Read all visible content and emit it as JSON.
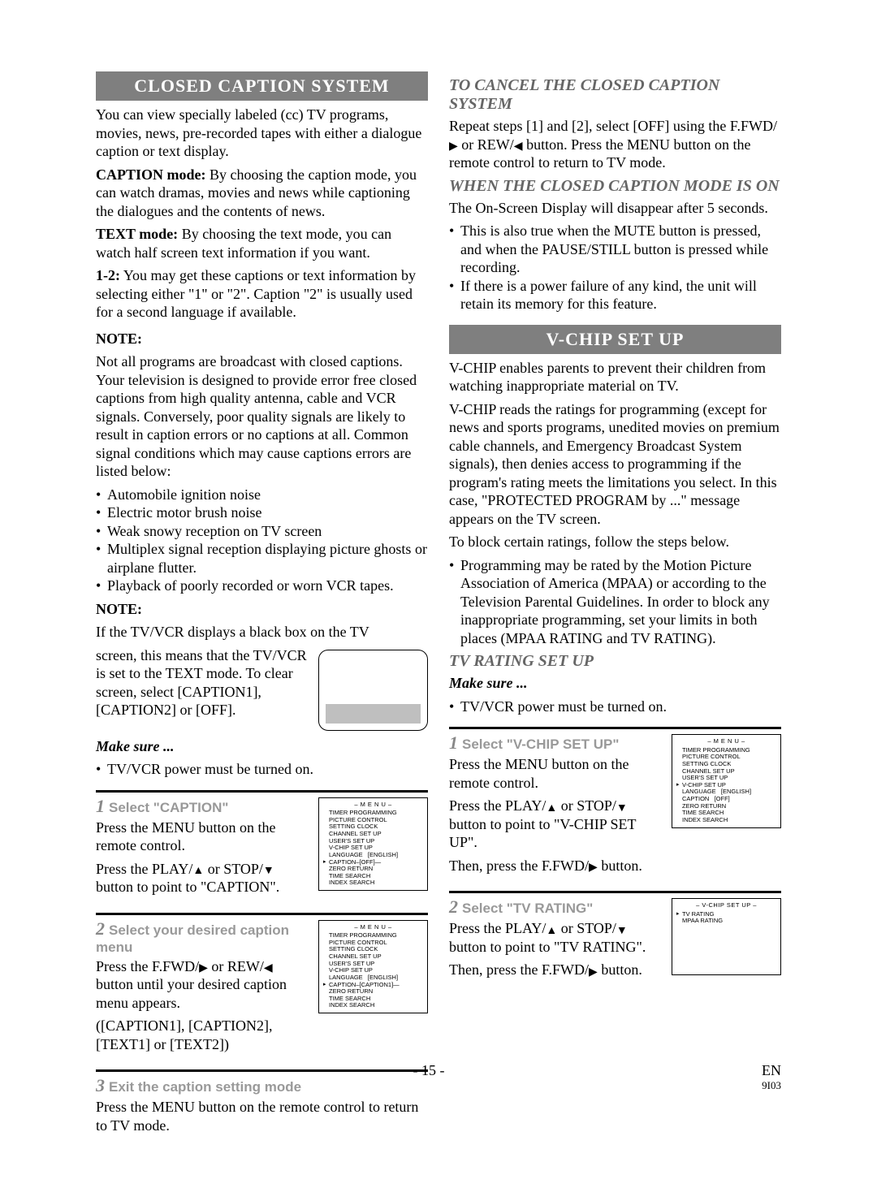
{
  "left": {
    "header": "CLOSED CAPTION SYSTEM",
    "intro": "You can view specially labeled (cc) TV programs, movies, news, pre-recorded tapes with either a dialogue caption or text display.",
    "caption_mode_label": "CAPTION mode:",
    "caption_mode_text": " By choosing the caption mode, you can watch dramas, movies and news while captioning the dialogues and the contents of news.",
    "text_mode_label": "TEXT mode:",
    "text_mode_text": " By choosing the text mode, you can watch half screen text information if you want.",
    "one_two_label": "1-2:",
    "one_two_text": " You may get these captions or text information by selecting either \"1\" or \"2\". Caption \"2\" is usually used for a second language if available.",
    "note_label": "NOTE:",
    "note_text": "Not all programs are broadcast with closed captions. Your television is designed to provide error free closed captions from high quality antenna, cable and VCR signals. Conversely, poor quality signals are likely to result in caption errors or no captions at all. Common signal conditions which may cause captions errors are listed below:",
    "note_bullets": [
      "Automobile ignition noise",
      "Electric motor brush noise",
      "Weak snowy reception on TV screen",
      "Multiplex signal reception displaying picture ghosts or airplane flutter.",
      "Playback of poorly recorded or worn VCR tapes."
    ],
    "note2_label": "NOTE:",
    "note2_a": "If the TV/VCR displays a black box on the TV",
    "note2_b": "screen, this means that the TV/VCR is set to the TEXT mode. To clear screen, select [CAPTION1], [CAPTION2] or [OFF].",
    "make_sure": "Make sure ...",
    "make_sure_item": "TV/VCR power must be turned on.",
    "step1": {
      "n": "1",
      "title": "Select \"CAPTION\"",
      "b1": "Press the MENU button on the remote control.",
      "b2_a": "Press the PLAY/",
      "b2_b": " or STOP/",
      "b2_c": " button to point to \"CAPTION\"."
    },
    "step2": {
      "n": "2",
      "title": "Select your desired caption menu",
      "b1_a": "Press the F.FWD/",
      "b1_b": " or REW/",
      "b1_c": " button until your desired caption menu appears.",
      "b2": "([CAPTION1], [CAPTION2], [TEXT1] or [TEXT2])"
    },
    "step3": {
      "n": "3",
      "title": "Exit the caption setting mode",
      "b1": "Press the MENU button on the remote control to return to TV mode."
    },
    "osd1": {
      "title": "– M E N U –",
      "lines": [
        "TIMER PROGRAMMING",
        "PICTURE CONTROL",
        "SETTING CLOCK",
        "CHANNEL SET UP",
        "USER'S SET UP",
        "V-CHIP SET UP",
        "LANGUAGE   [ENGLISH]",
        "CAPTION–[OFF]—",
        "ZERO RETURN",
        "TIME SEARCH",
        "INDEX SEARCH"
      ],
      "ptr_index": 7
    },
    "osd2": {
      "title": "– M E N U –",
      "lines": [
        "TIMER PROGRAMMING",
        "PICTURE CONTROL",
        "SETTING CLOCK",
        "CHANNEL SET UP",
        "USER'S SET UP",
        "V-CHIP SET UP",
        "LANGUAGE   [ENGLISH]",
        "CAPTION–[CAPTION1]—",
        "ZERO RETURN",
        "TIME SEARCH",
        "INDEX SEARCH"
      ],
      "ptr_index": 7
    }
  },
  "right": {
    "h1": "TO CANCEL THE CLOSED CAPTION SYSTEM",
    "p1_a": "Repeat steps [1] and [2], select [OFF] using the F.FWD/",
    "p1_b": " or REW/",
    "p1_c": " button. Press the MENU button on the remote control to return to TV mode.",
    "h2": "WHEN THE CLOSED CAPTION MODE IS ON",
    "p2": "The On-Screen Display will disappear after 5 seconds.",
    "b2": [
      "This is also true when the MUTE button is pressed, and when the PAUSE/STILL button is pressed while recording.",
      "If there is a power failure of any kind, the unit will retain its memory for this feature."
    ],
    "header2": "V-CHIP SET UP",
    "p3": "V-CHIP enables parents to prevent their children from watching inappropriate material on TV.",
    "p4": "V-CHIP reads the ratings for programming (except for news and sports programs, unedited movies on premium cable channels, and Emergency Broadcast System signals), then denies access to programming if the program's rating meets the limitations you select. In this case, \"PROTECTED PROGRAM by ...\" message appears on the TV screen.",
    "p5": "To block certain ratings, follow the steps below.",
    "b3": [
      "Programming may be rated by the Motion Picture Association of America (MPAA) or according to the Television Parental Guidelines. In order to block any inappropriate programming, set your limits in both places (MPAA RATING and TV RATING)."
    ],
    "h3": "TV RATING SET UP",
    "make_sure": "Make sure ...",
    "make_sure_item": "TV/VCR power must be turned on.",
    "step1": {
      "n": "1",
      "title": "Select \"V-CHIP SET UP\"",
      "b1": "Press the MENU button on the remote control.",
      "b2_a": "Press the PLAY/",
      "b2_b": " or STOP/",
      "b2_c": " button to point to \"V-CHIP SET UP\".",
      "b3_a": "Then, press the F.FWD/",
      "b3_b": " button."
    },
    "step2": {
      "n": "2",
      "title": "Select \"TV RATING\"",
      "b1_a": "Press the PLAY/",
      "b1_b": " or STOP/",
      "b1_c": " button to point to \"TV RATING\".",
      "b2_a": "Then, press the F.FWD/",
      "b2_b": " button."
    },
    "osd1": {
      "title": "– M E N U –",
      "lines": [
        "TIMER PROGRAMMING",
        "PICTURE CONTROL",
        "SETTING CLOCK",
        "CHANNEL SET UP",
        "USER'S SET UP",
        "V-CHIP SET UP",
        "LANGUAGE   [ENGLISH]",
        "CAPTION   [OFF]",
        "ZERO RETURN",
        "TIME SEARCH",
        "INDEX SEARCH"
      ],
      "ptr_index": 5
    },
    "osd2": {
      "title": "– V-CHIP SET UP –",
      "lines": [
        "TV RATING",
        "MPAA RATING"
      ],
      "ptr_index": 0
    }
  },
  "footer": {
    "page": "- 15 -",
    "lang": "EN",
    "code": "9I03"
  },
  "symbols": {
    "up": "▲",
    "down": "▼",
    "right": "▶",
    "left": "◀",
    "ptr": "▸"
  }
}
